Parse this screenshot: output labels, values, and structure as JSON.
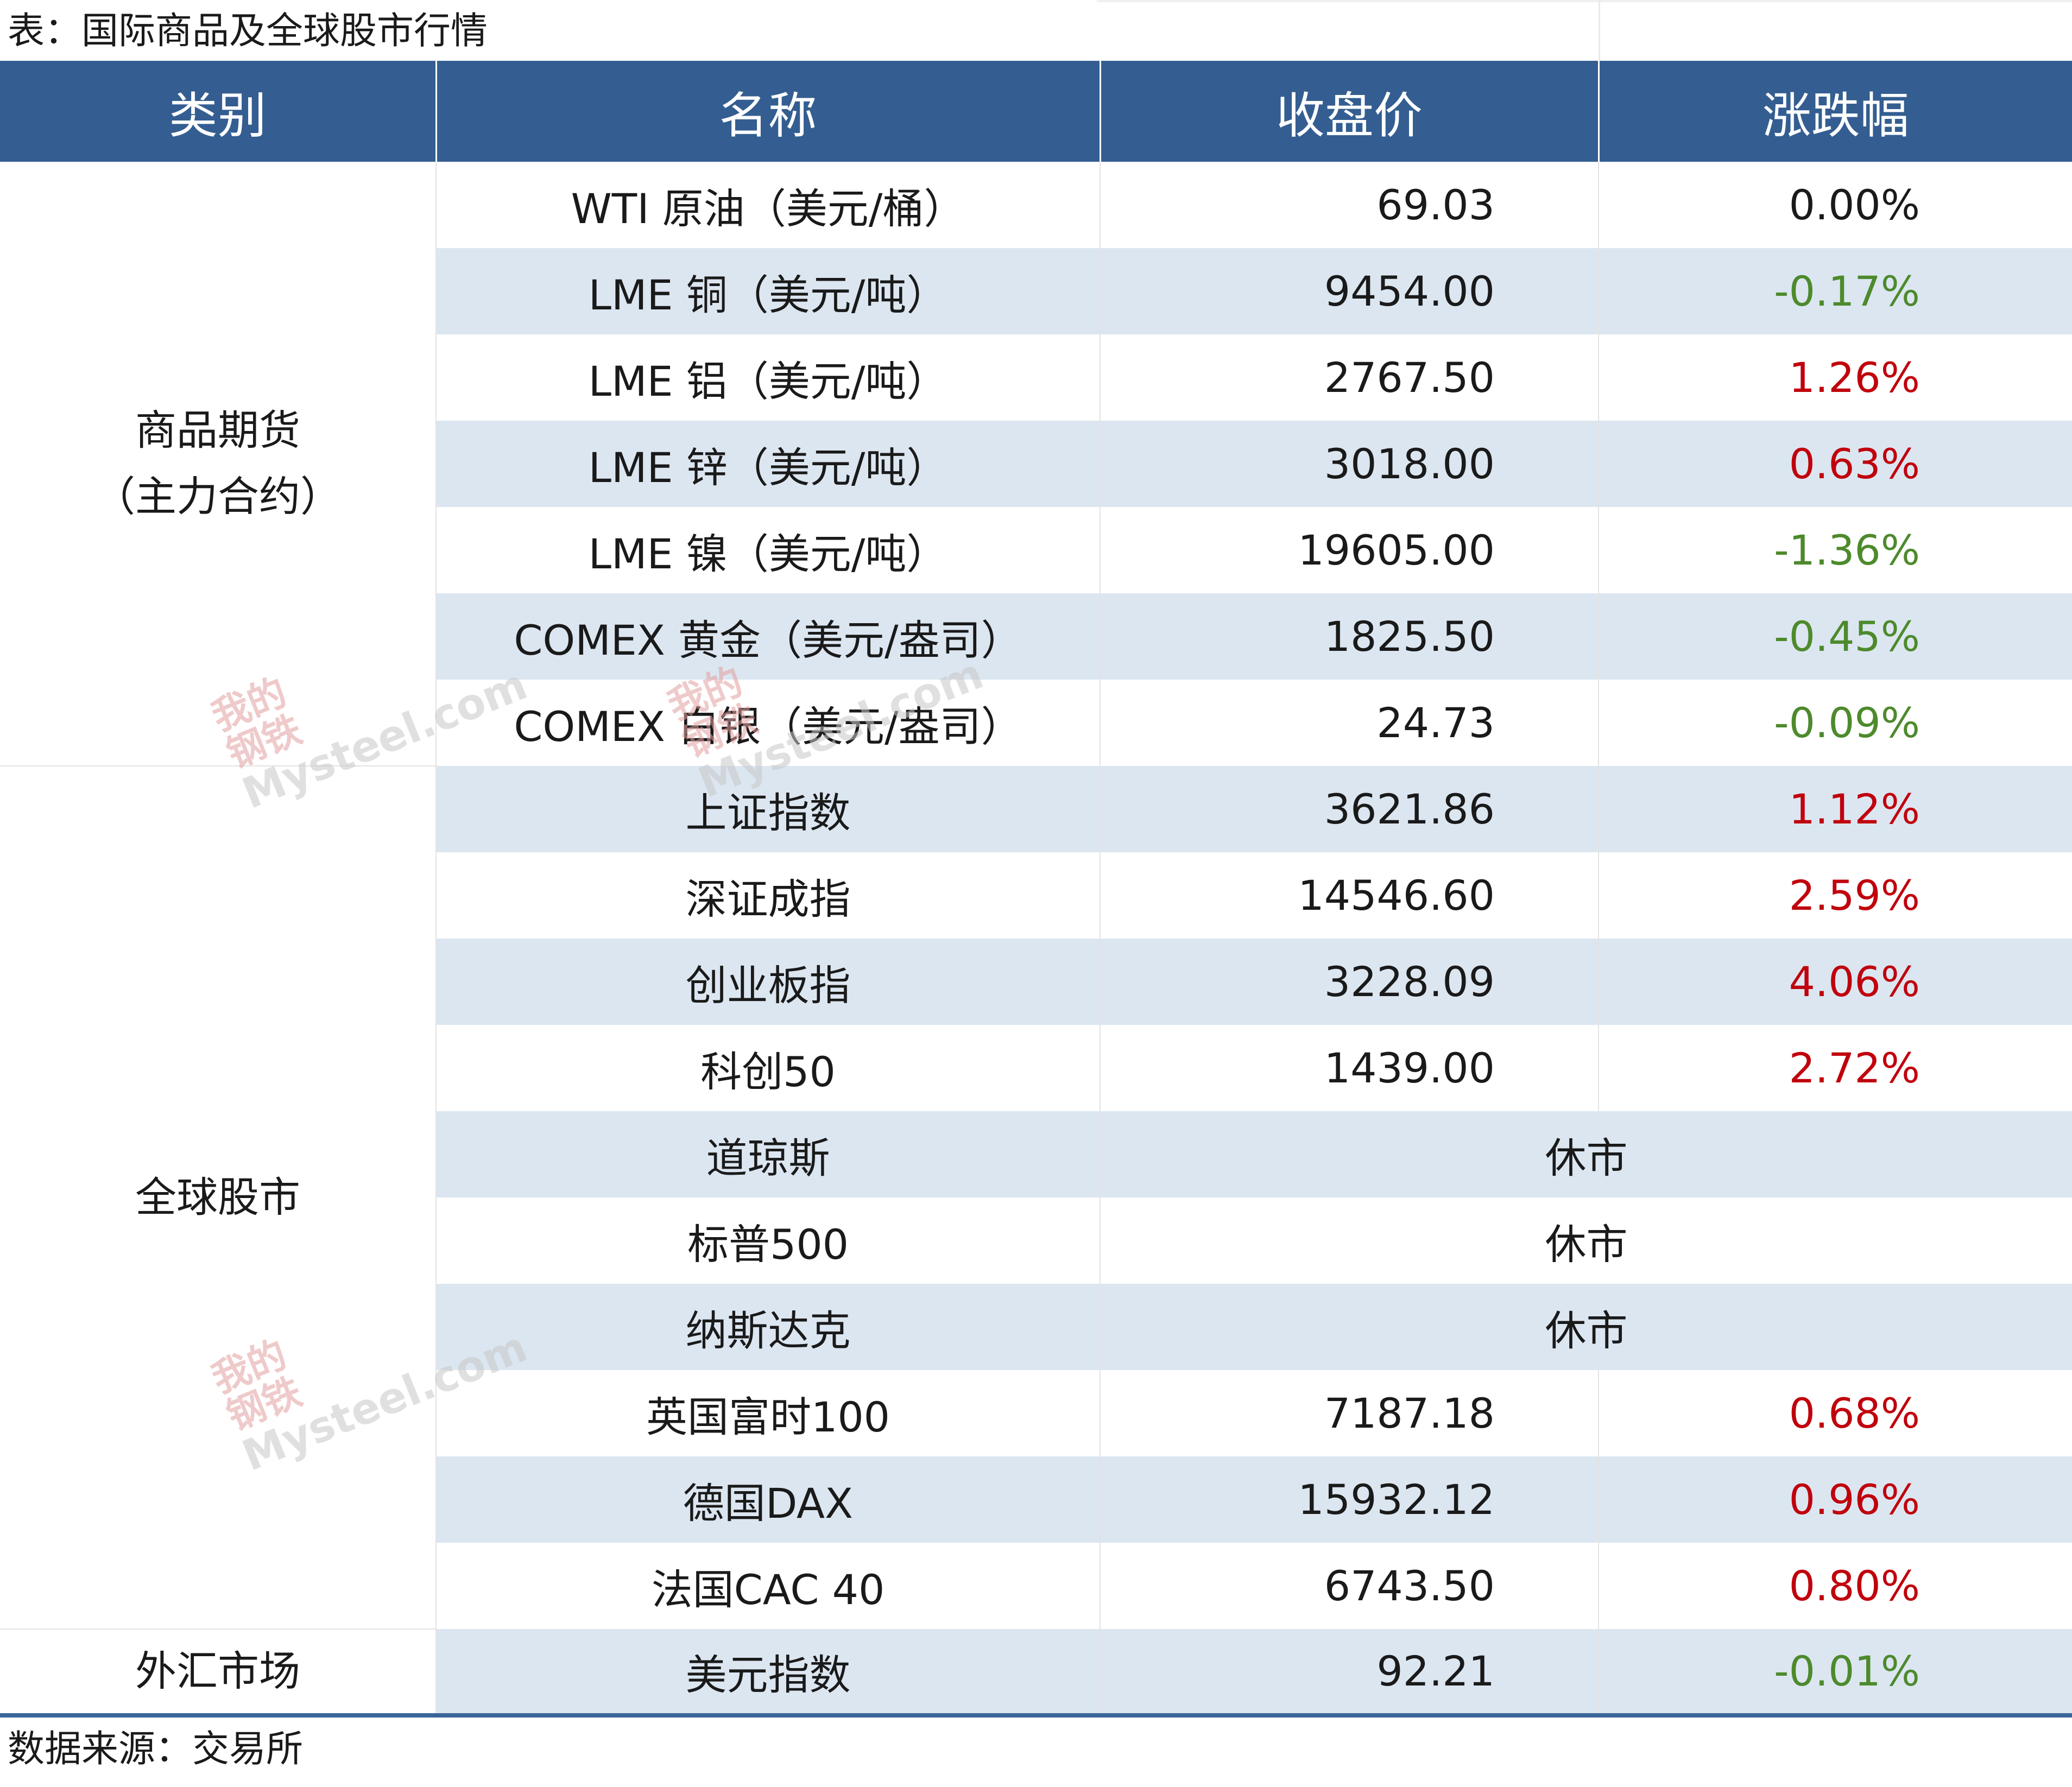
{
  "caption": "表：国际商品及全球股市行情",
  "headers": [
    "类别",
    "名称",
    "收盘价",
    "涨跌幅"
  ],
  "categories": {
    "commodities_line1": "商品期货",
    "commodities_line2": "（主力合约）",
    "stocks": "全球股市",
    "fx": "外汇市场"
  },
  "rows": [
    {
      "name": "WTI 原油（美元/桶）",
      "close": "69.03",
      "change": "0.00%",
      "trend": "flat"
    },
    {
      "name": "LME 铜（美元/吨）",
      "close": "9454.00",
      "change": "-0.17%",
      "trend": "down"
    },
    {
      "name": "LME 铝（美元/吨）",
      "close": "2767.50",
      "change": "1.26%",
      "trend": "up"
    },
    {
      "name": "LME 锌（美元/吨）",
      "close": "3018.00",
      "change": "0.63%",
      "trend": "up"
    },
    {
      "name": "LME 镍（美元/吨）",
      "close": "19605.00",
      "change": "-1.36%",
      "trend": "down"
    },
    {
      "name": "COMEX 黄金（美元/盎司）",
      "close": "1825.50",
      "change": "-0.45%",
      "trend": "down"
    },
    {
      "name": "COMEX 白银（美元/盎司）",
      "close": "24.73",
      "change": "-0.09%",
      "trend": "down"
    },
    {
      "name": "上证指数",
      "close": "3621.86",
      "change": "1.12%",
      "trend": "up"
    },
    {
      "name": "深证成指",
      "close": "14546.60",
      "change": "2.59%",
      "trend": "up"
    },
    {
      "name": "创业板指",
      "close": "3228.09",
      "change": "4.06%",
      "trend": "up"
    },
    {
      "name": "科创50",
      "close": "1439.00",
      "change": "2.72%",
      "trend": "up"
    },
    {
      "name": "道琼斯",
      "status": "休市"
    },
    {
      "name": "标普500",
      "status": "休市"
    },
    {
      "name": "纳斯达克",
      "status": "休市"
    },
    {
      "name": "英国富时100",
      "close": "7187.18",
      "change": "0.68%",
      "trend": "up"
    },
    {
      "name": "德国DAX",
      "close": "15932.12",
      "change": "0.96%",
      "trend": "up"
    },
    {
      "name": "法国CAC 40",
      "close": "6743.50",
      "change": "0.80%",
      "trend": "up"
    },
    {
      "name": "美元指数",
      "close": "92.21",
      "change": "-0.01%",
      "trend": "down"
    }
  ],
  "watermark": {
    "glyphs_top": "我的",
    "glyphs_bottom": "钢铁",
    "brand": "Mysteel.com"
  },
  "colors": {
    "header_bg": "#345e91",
    "row_shade": "#dce6f1",
    "up": "#c0000c",
    "down": "#4d8a2c"
  },
  "source": "数据来源：交易所"
}
